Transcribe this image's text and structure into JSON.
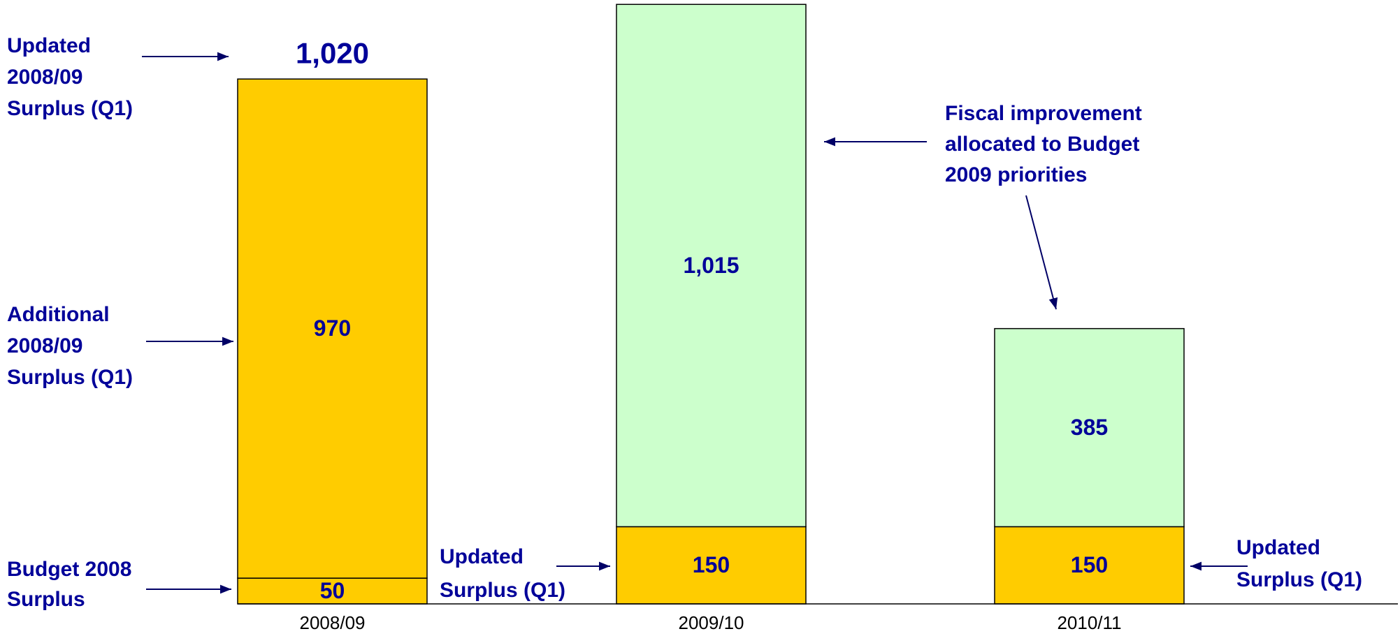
{
  "chart_data": {
    "type": "stacked_bar",
    "categories": [
      "2008/09",
      "2009/10",
      "2010/11"
    ],
    "series": [
      {
        "colors": [
          "#FFCC00",
          "#FFCC00",
          "#FFCC00"
        ],
        "values": [
          50,
          150,
          150
        ],
        "value_labels": [
          "50",
          "150",
          "150"
        ]
      },
      {
        "colors": [
          "#FFCC00",
          "#CCFFCC",
          "#CCFFCC"
        ],
        "values": [
          970,
          1015,
          385
        ],
        "value_labels": [
          "970",
          "1,015",
          "385"
        ]
      }
    ],
    "totals": [
      1020
    ],
    "total_labels": [
      "1,020"
    ],
    "ylim": [
      0,
      1170
    ],
    "annotations": [
      {
        "lines": [
          "Updated",
          "2008/09",
          "Surplus (Q1)"
        ]
      },
      {
        "lines": [
          "Additional",
          "2008/09",
          "Surplus (Q1)"
        ]
      },
      {
        "lines": [
          "Budget 2008",
          "Surplus"
        ]
      },
      {
        "lines": [
          "Updated",
          "Surplus (Q1)"
        ]
      },
      {
        "lines": [
          "Fiscal improvement",
          "allocated to Budget",
          "2009 priorities"
        ]
      },
      {
        "lines": [
          "Updated",
          "Surplus (Q1)"
        ]
      }
    ]
  }
}
